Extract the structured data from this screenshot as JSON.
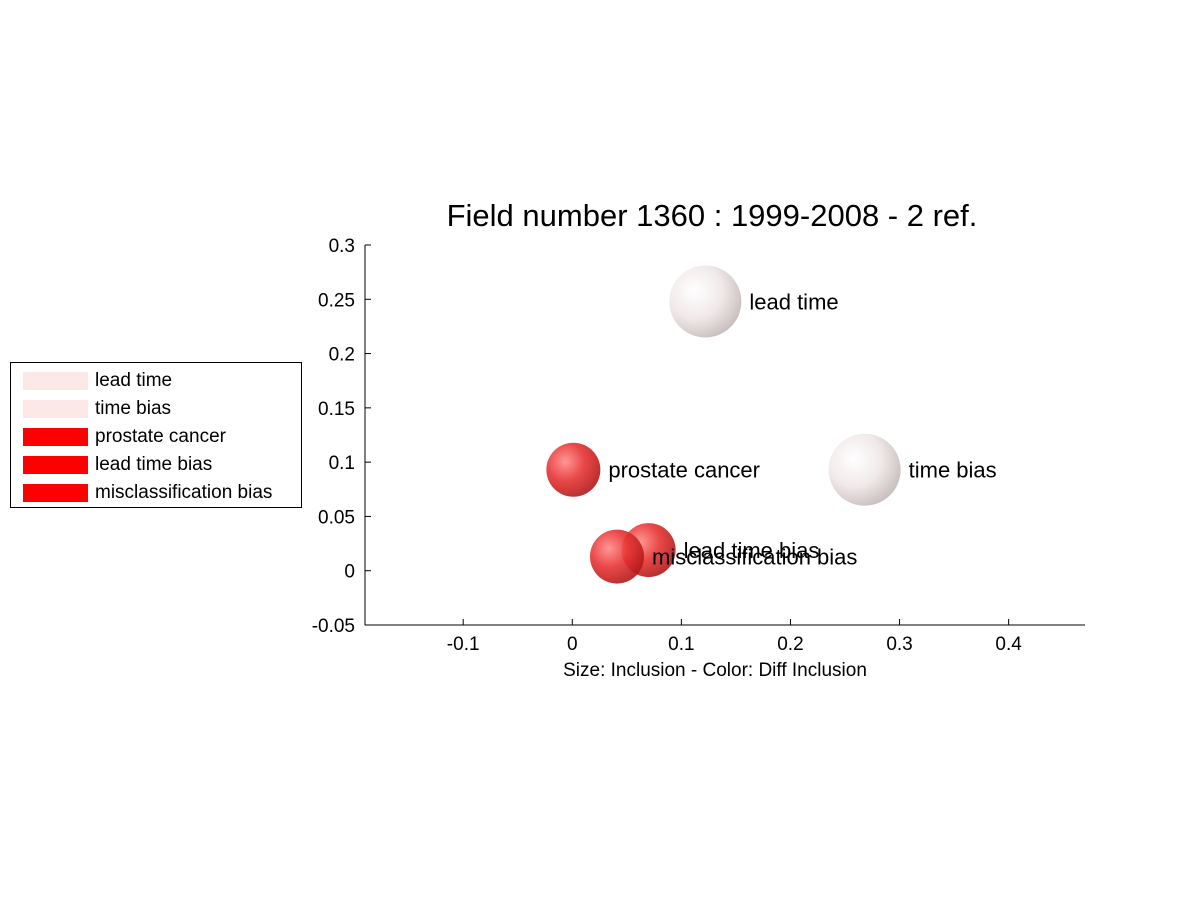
{
  "chart_data": {
    "type": "scatter",
    "title": "Field number 1360 : 1999-2008  - 2 ref.",
    "xlabel": "Size: Inclusion - Color: Diff Inclusion",
    "ylabel": "",
    "xlim": [
      -0.19,
      0.47
    ],
    "ylim": [
      -0.05,
      0.3
    ],
    "xticks": [
      -0.1,
      0,
      0.1,
      0.2,
      0.3,
      0.4
    ],
    "xtick_labels": [
      "-0.1",
      "0",
      "0.1",
      "0.2",
      "0.3",
      "0.4"
    ],
    "yticks": [
      -0.05,
      0,
      0.05,
      0.1,
      0.15,
      0.2,
      0.25,
      0.3
    ],
    "ytick_labels": [
      "-0.05",
      "0",
      "0.05",
      "0.1",
      "0.15",
      "0.2",
      "0.25",
      "0.3"
    ],
    "grid": false,
    "legend_position": "left",
    "points": [
      {
        "label": "lead time",
        "x": 0.122,
        "y": 0.248,
        "size": 1.0,
        "color": "#f2e8e8",
        "legend_color": "#fde8e8"
      },
      {
        "label": "time bias",
        "x": 0.268,
        "y": 0.093,
        "size": 1.0,
        "color": "#f2e8e8",
        "legend_color": "#fde8e8"
      },
      {
        "label": "prostate cancer",
        "x": 0.001,
        "y": 0.093,
        "size": 0.75,
        "color": "#e53030",
        "legend_color": "#ff0000"
      },
      {
        "label": "lead time bias",
        "x": 0.07,
        "y": 0.019,
        "size": 0.75,
        "color": "#e53030",
        "legend_color": "#ff0000"
      },
      {
        "label": "misclassification bias",
        "x": 0.041,
        "y": 0.013,
        "size": 0.75,
        "color": "#e53030",
        "legend_color": "#ff0000"
      }
    ]
  }
}
